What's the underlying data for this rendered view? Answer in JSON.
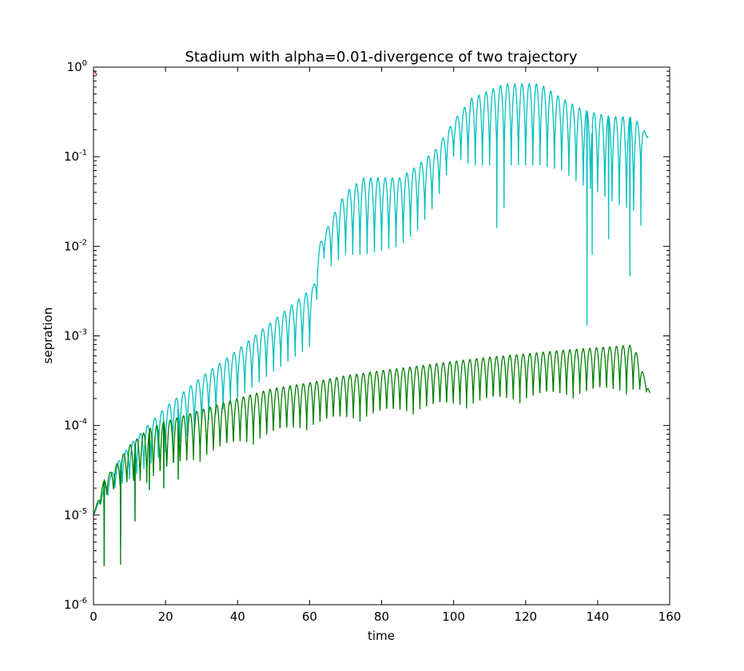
{
  "chart_data": {
    "type": "line",
    "title": "Stadium with alpha=0.01-divergence of two trajectory",
    "xlabel": "time",
    "ylabel": "sepration",
    "xlim": [
      0,
      160
    ],
    "ylim": [
      1e-06,
      1
    ],
    "yscale": "log",
    "grid": false,
    "xticks": [
      0,
      20,
      40,
      60,
      80,
      100,
      120,
      140,
      160
    ],
    "ytick_exponents": [
      0,
      -1,
      -2,
      -3,
      -4,
      -5,
      -6
    ],
    "ytick_base": "10",
    "series": [
      {
        "color": "#00bfbf",
        "x_end": 154,
        "envelope_peaks": [
          [
            0,
            1e-05
          ],
          [
            3,
            2e-05
          ],
          [
            6,
            3.5e-05
          ],
          [
            10,
            6e-05
          ],
          [
            15,
            0.0001
          ],
          [
            20,
            0.00016
          ],
          [
            30,
            0.00035
          ],
          [
            40,
            0.0007
          ],
          [
            50,
            0.0015
          ],
          [
            61,
            0.0035
          ],
          [
            63,
            0.011
          ],
          [
            66,
            0.02
          ],
          [
            70,
            0.04
          ],
          [
            75,
            0.058
          ],
          [
            85,
            0.058
          ],
          [
            90,
            0.08
          ],
          [
            95,
            0.12
          ],
          [
            100,
            0.25
          ],
          [
            105,
            0.45
          ],
          [
            114,
            0.65
          ],
          [
            124,
            0.65
          ],
          [
            130,
            0.45
          ],
          [
            135,
            0.35
          ],
          [
            140,
            0.3
          ],
          [
            145,
            0.28
          ],
          [
            150,
            0.28
          ],
          [
            154,
            0.17
          ]
        ],
        "envelope_troughs": [
          [
            0,
            1e-05
          ],
          [
            3,
            1.5e-05
          ],
          [
            6,
            2e-05
          ],
          [
            10,
            2.5e-05
          ],
          [
            15,
            3.5e-05
          ],
          [
            20,
            5e-05
          ],
          [
            30,
            0.0001
          ],
          [
            40,
            0.0002
          ],
          [
            50,
            0.0004
          ],
          [
            61,
            0.0008
          ],
          [
            63,
            0.008
          ],
          [
            66,
            0.006
          ],
          [
            70,
            0.008
          ],
          [
            75,
            0.008
          ],
          [
            85,
            0.01
          ],
          [
            90,
            0.015
          ],
          [
            95,
            0.03
          ],
          [
            100,
            0.1
          ],
          [
            105,
            0.08
          ],
          [
            114,
            0.08
          ],
          [
            124,
            0.08
          ],
          [
            130,
            0.07
          ],
          [
            135,
            0.05
          ],
          [
            140,
            0.04
          ],
          [
            145,
            0.03
          ],
          [
            150,
            0.025
          ],
          [
            154,
            0.17
          ]
        ],
        "period": 2.0,
        "dips": [
          [
            3,
            2.7e-06
          ],
          [
            7.5,
            4.5e-06
          ],
          [
            11.5,
            8.5e-06
          ],
          [
            15.5,
            1.9e-05
          ],
          [
            19.5,
            2e-05
          ],
          [
            23.5,
            2.5e-05
          ],
          [
            112,
            0.016
          ],
          [
            114,
            0.027
          ],
          [
            137,
            0.0013
          ],
          [
            138.5,
            0.008
          ],
          [
            143,
            0.012
          ],
          [
            149,
            0.0046
          ],
          [
            152,
            0.017
          ]
        ]
      },
      {
        "color": "#007f00",
        "x_end": 154.5,
        "envelope_peaks": [
          [
            0,
            1e-05
          ],
          [
            3,
            2.5e-05
          ],
          [
            6,
            3.5e-05
          ],
          [
            10,
            6e-05
          ],
          [
            15,
            9e-05
          ],
          [
            20,
            0.00011
          ],
          [
            30,
            0.00015
          ],
          [
            40,
            0.0002
          ],
          [
            50,
            0.00026
          ],
          [
            60,
            0.0003
          ],
          [
            70,
            0.00036
          ],
          [
            80,
            0.00041
          ],
          [
            90,
            0.00046
          ],
          [
            100,
            0.00052
          ],
          [
            110,
            0.00058
          ],
          [
            120,
            0.00063
          ],
          [
            130,
            0.00069
          ],
          [
            140,
            0.00074
          ],
          [
            150,
            0.00079
          ],
          [
            154.5,
            0.00023
          ]
        ],
        "envelope_troughs": [
          [
            0,
            1e-05
          ],
          [
            3,
            1.5e-05
          ],
          [
            6,
            1.8e-05
          ],
          [
            10,
            2e-05
          ],
          [
            15,
            2.3e-05
          ],
          [
            20,
            2.7e-05
          ],
          [
            30,
            4e-05
          ],
          [
            40,
            5.5e-05
          ],
          [
            50,
            7e-05
          ],
          [
            60,
            9e-05
          ],
          [
            70,
            0.000105
          ],
          [
            80,
            0.00012
          ],
          [
            90,
            0.000135
          ],
          [
            100,
            0.00015
          ],
          [
            110,
            0.000165
          ],
          [
            120,
            0.00018
          ],
          [
            130,
            0.000195
          ],
          [
            140,
            0.00021
          ],
          [
            150,
            0.000225
          ],
          [
            154.5,
            0.00023
          ]
        ],
        "period": 1.85,
        "dips": [
          [
            3,
            2.7e-06
          ],
          [
            7.5,
            2.8e-06
          ],
          [
            11.5,
            8.5e-06
          ],
          [
            15.5,
            1.9e-05
          ],
          [
            19.5,
            2e-05
          ],
          [
            23.5,
            2.5e-05
          ]
        ]
      },
      {
        "color": "#bf0040",
        "points": [
          [
            0,
            0.92
          ],
          [
            1,
            0.82
          ]
        ]
      }
    ]
  }
}
